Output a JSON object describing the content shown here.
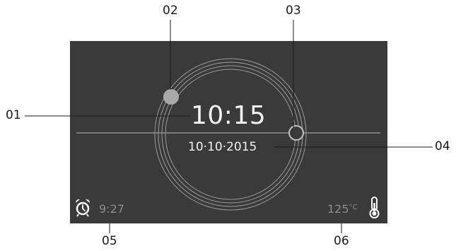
{
  "screen": {
    "time": "10:15",
    "date": "10·10·2015",
    "alarm_time": "9:27",
    "temperature_value": "125",
    "temperature_unit": "°C",
    "colors": {
      "background": "#3a3a3a",
      "ring": "#9a9a9a",
      "knob": "#a9a9a9",
      "text": "#f2f2f2",
      "dim_text": "#8c8c8c"
    },
    "icons": [
      "alarm-clock-icon",
      "thermometer-icon"
    ]
  },
  "callouts": {
    "c01": "01",
    "c02": "02",
    "c03": "03",
    "c04": "04",
    "c05": "05",
    "c06": "06"
  }
}
